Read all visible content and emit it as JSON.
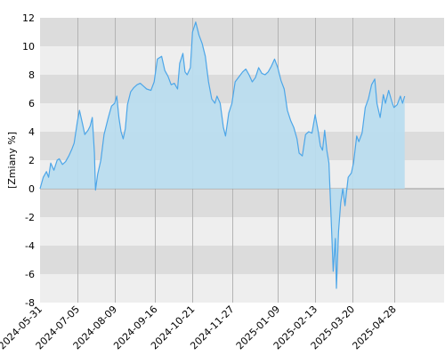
{
  "chart_data": {
    "type": "area",
    "title": "",
    "xlabel": "",
    "ylabel": "[Zmiany %]",
    "ylim": [
      -8,
      12
    ],
    "yticks": [
      -8,
      -6,
      -4,
      -2,
      0,
      2,
      4,
      6,
      8,
      10,
      12
    ],
    "ytick_labels": [
      "-8",
      "-6",
      "-4",
      "-2",
      "0",
      "2",
      "4",
      "6",
      "8",
      "10",
      "12"
    ],
    "xlim": [
      "2024-05-31",
      "2025-06-14"
    ],
    "xticks": [
      "2024-05-31",
      "2024-07-05",
      "2024-08-09",
      "2024-09-16",
      "2024-10-21",
      "2024-11-27",
      "2025-01-09",
      "2025-02-13",
      "2025-03-20",
      "2025-04-28"
    ],
    "xtick_labels": [
      "2024-05-31",
      "2024-07-05",
      "2024-08-09",
      "2024-09-16",
      "2024-10-21",
      "2024-11-27",
      "2025-01-09",
      "2025-02-13",
      "2025-03-20",
      "2025-04-28"
    ],
    "grid": true,
    "legend": "none",
    "colors": {
      "line": "#4da6e8",
      "fill": "#b9dcee",
      "band_dark": "#dcdcdc",
      "band_light": "#eeeeee",
      "vgrid": "#b4b4b4",
      "zero_line": "#9a9a9a"
    },
    "series": [
      {
        "points": [
          [
            "2024-05-31",
            0.0
          ],
          [
            "2024-06-03",
            0.8
          ],
          [
            "2024-06-06",
            1.2
          ],
          [
            "2024-06-08",
            0.8
          ],
          [
            "2024-06-10",
            1.8
          ],
          [
            "2024-06-13",
            1.3
          ],
          [
            "2024-06-16",
            2.0
          ],
          [
            "2024-06-18",
            2.1
          ],
          [
            "2024-06-21",
            1.7
          ],
          [
            "2024-06-24",
            1.9
          ],
          [
            "2024-06-27",
            2.3
          ],
          [
            "2024-06-30",
            2.8
          ],
          [
            "2024-07-02",
            3.2
          ],
          [
            "2024-07-05",
            4.7
          ],
          [
            "2024-07-07",
            5.5
          ],
          [
            "2024-07-10",
            4.5
          ],
          [
            "2024-07-12",
            3.8
          ],
          [
            "2024-07-15",
            4.1
          ],
          [
            "2024-07-17",
            4.4
          ],
          [
            "2024-07-19",
            5.0
          ],
          [
            "2024-07-21",
            2.5
          ],
          [
            "2024-07-22",
            -0.1
          ],
          [
            "2024-07-24",
            1.0
          ],
          [
            "2024-07-27",
            2.0
          ],
          [
            "2024-07-30",
            3.8
          ],
          [
            "2024-08-03",
            5.0
          ],
          [
            "2024-08-06",
            5.8
          ],
          [
            "2024-08-09",
            6.0
          ],
          [
            "2024-08-11",
            6.5
          ],
          [
            "2024-08-13",
            5.0
          ],
          [
            "2024-08-15",
            4.0
          ],
          [
            "2024-08-17",
            3.5
          ],
          [
            "2024-08-19",
            4.2
          ],
          [
            "2024-08-21",
            5.9
          ],
          [
            "2024-08-24",
            6.8
          ],
          [
            "2024-08-27",
            7.1
          ],
          [
            "2024-08-30",
            7.3
          ],
          [
            "2024-09-02",
            7.4
          ],
          [
            "2024-09-05",
            7.2
          ],
          [
            "2024-09-08",
            7.0
          ],
          [
            "2024-09-12",
            6.9
          ],
          [
            "2024-09-15",
            7.5
          ],
          [
            "2024-09-18",
            9.1
          ],
          [
            "2024-09-22",
            9.3
          ],
          [
            "2024-09-25",
            8.3
          ],
          [
            "2024-09-28",
            7.9
          ],
          [
            "2024-10-01",
            7.3
          ],
          [
            "2024-10-04",
            7.4
          ],
          [
            "2024-10-07",
            7.0
          ],
          [
            "2024-10-09",
            8.8
          ],
          [
            "2024-10-12",
            9.5
          ],
          [
            "2024-10-14",
            8.2
          ],
          [
            "2024-10-16",
            8.0
          ],
          [
            "2024-10-19",
            8.5
          ],
          [
            "2024-10-21",
            11.0
          ],
          [
            "2024-10-24",
            11.7
          ],
          [
            "2024-10-27",
            10.8
          ],
          [
            "2024-10-30",
            10.2
          ],
          [
            "2024-11-02",
            9.3
          ],
          [
            "2024-11-05",
            7.5
          ],
          [
            "2024-11-08",
            6.3
          ],
          [
            "2024-11-11",
            6.0
          ],
          [
            "2024-11-13",
            6.5
          ],
          [
            "2024-11-16",
            6.0
          ],
          [
            "2024-11-19",
            4.3
          ],
          [
            "2024-11-21",
            3.7
          ],
          [
            "2024-11-24",
            5.3
          ],
          [
            "2024-11-27",
            6.0
          ],
          [
            "2024-11-30",
            7.5
          ],
          [
            "2024-12-04",
            7.9
          ],
          [
            "2024-12-07",
            8.2
          ],
          [
            "2024-12-10",
            8.4
          ],
          [
            "2024-12-13",
            8.0
          ],
          [
            "2024-12-16",
            7.5
          ],
          [
            "2024-12-19",
            7.8
          ],
          [
            "2024-12-22",
            8.5
          ],
          [
            "2024-12-25",
            8.1
          ],
          [
            "2024-12-28",
            8.0
          ],
          [
            "2024-12-31",
            8.2
          ],
          [
            "2025-01-03",
            8.6
          ],
          [
            "2025-01-06",
            9.1
          ],
          [
            "2025-01-09",
            8.5
          ],
          [
            "2025-01-12",
            7.6
          ],
          [
            "2025-01-15",
            7.0
          ],
          [
            "2025-01-18",
            5.5
          ],
          [
            "2025-01-21",
            4.8
          ],
          [
            "2025-01-24",
            4.3
          ],
          [
            "2025-01-27",
            3.5
          ],
          [
            "2025-01-29",
            2.5
          ],
          [
            "2025-02-01",
            2.3
          ],
          [
            "2025-02-04",
            3.8
          ],
          [
            "2025-02-07",
            4.0
          ],
          [
            "2025-02-10",
            3.9
          ],
          [
            "2025-02-13",
            5.2
          ],
          [
            "2025-02-16",
            4.0
          ],
          [
            "2025-02-18",
            3.0
          ],
          [
            "2025-02-20",
            2.7
          ],
          [
            "2025-02-22",
            4.1
          ],
          [
            "2025-02-24",
            2.7
          ],
          [
            "2025-02-26",
            1.8
          ],
          [
            "2025-02-28",
            -2.0
          ],
          [
            "2025-03-02",
            -5.8
          ],
          [
            "2025-03-04",
            -3.5
          ],
          [
            "2025-03-05",
            -7.0
          ],
          [
            "2025-03-07",
            -3.0
          ],
          [
            "2025-03-09",
            -1.0
          ],
          [
            "2025-03-11",
            0.0
          ],
          [
            "2025-03-13",
            -1.2
          ],
          [
            "2025-03-16",
            0.8
          ],
          [
            "2025-03-19",
            1.1
          ],
          [
            "2025-03-21",
            1.8
          ],
          [
            "2025-03-24",
            3.7
          ],
          [
            "2025-03-26",
            3.3
          ],
          [
            "2025-03-29",
            3.9
          ],
          [
            "2025-04-01",
            5.7
          ],
          [
            "2025-04-04",
            6.3
          ],
          [
            "2025-04-07",
            7.3
          ],
          [
            "2025-04-10",
            7.7
          ],
          [
            "2025-04-12",
            6.0
          ],
          [
            "2025-04-15",
            5.0
          ],
          [
            "2025-04-18",
            6.6
          ],
          [
            "2025-04-20",
            6.0
          ],
          [
            "2025-04-23",
            6.9
          ],
          [
            "2025-04-26",
            6.1
          ],
          [
            "2025-04-28",
            5.7
          ],
          [
            "2025-05-01",
            5.9
          ],
          [
            "2025-05-04",
            6.5
          ],
          [
            "2025-05-06",
            6.0
          ],
          [
            "2025-05-08",
            6.5
          ]
        ]
      }
    ]
  }
}
